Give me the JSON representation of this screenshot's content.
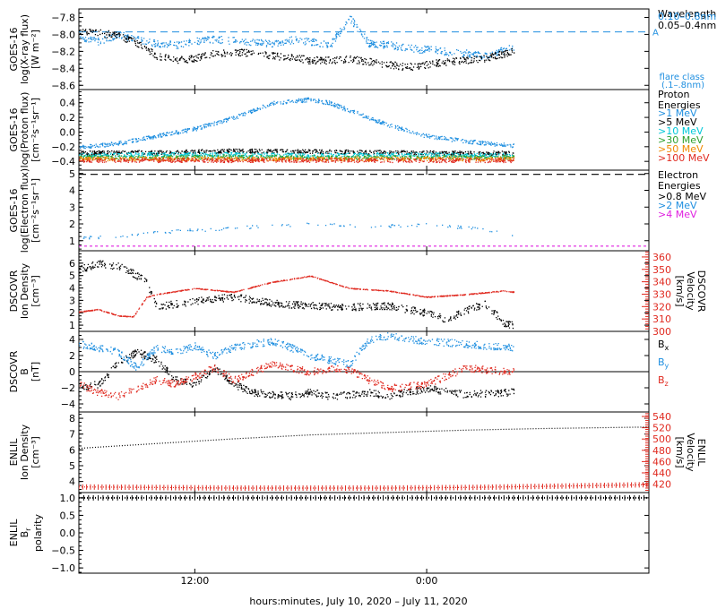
{
  "colors": {
    "black": "#000000",
    "blue": "#1f8fe0",
    "cyan": "#00c8d8",
    "green": "#2ea02e",
    "orange": "#f08a00",
    "red": "#e02a20",
    "magenta": "#e020e0",
    "xray_short": "#1f8fe0"
  },
  "x_axis": {
    "label": "hours:minutes, July 10, 2020 – July 11, 2020",
    "range_hours": [
      6,
      35.5
    ],
    "ticks": [
      {
        "label": "12:00",
        "hour": 12
      },
      {
        "label": "0:00",
        "hour": 24
      }
    ]
  },
  "chart_data": [
    {
      "id": "xray",
      "type": "scatter",
      "ylabel": [
        "GOES-16",
        "log(X-ray flux)",
        "[W m⁻²]"
      ],
      "ylim": [
        -8.65,
        -7.7
      ],
      "yticks": [
        -8.6,
        -8.4,
        -8.2,
        -8.0,
        -7.8
      ],
      "ytick_labels": [
        "−8.6",
        "−8.4",
        "−8.2",
        "−8.0",
        "−7.8"
      ],
      "legend": {
        "title": "Wavelength",
        "entries": [
          {
            "name": "0.10–0.8nm",
            "color_key": "blue"
          },
          {
            "name": "0.05–0.4nm",
            "color_key": "black"
          }
        ]
      },
      "reference_line": {
        "y": -7.97,
        "label": "A",
        "note": "flare class",
        "note2": "(.1–.8nm)"
      },
      "series": [
        {
          "name": "0.10–0.8nm",
          "color_key": "blue",
          "x": [
            6,
            7,
            8,
            9,
            10,
            11,
            12,
            13,
            14,
            15,
            16,
            17,
            18,
            19,
            20,
            21,
            22,
            23,
            23.8,
            24,
            25,
            26,
            27,
            28,
            28.5
          ],
          "y": [
            -8.02,
            -8.08,
            -8.0,
            -8.05,
            -8.1,
            -8.12,
            -8.08,
            -8.05,
            -8.07,
            -8.09,
            -8.1,
            -8.06,
            -8.08,
            -8.12,
            -7.8,
            -8.1,
            -8.12,
            -8.15,
            -8.18,
            -8.16,
            -8.2,
            -8.22,
            -8.25,
            -8.18,
            -8.15
          ]
        },
        {
          "name": "0.05–0.4nm",
          "color_key": "black",
          "x": [
            6,
            7,
            8,
            9,
            10,
            11,
            12,
            13,
            14,
            15,
            16,
            17,
            18,
            19,
            20,
            21,
            22,
            23,
            24,
            25,
            26,
            27,
            28,
            28.5
          ],
          "y": [
            -7.95,
            -7.98,
            -8.0,
            -8.1,
            -8.25,
            -8.3,
            -8.28,
            -8.22,
            -8.2,
            -8.22,
            -8.25,
            -8.27,
            -8.3,
            -8.3,
            -8.28,
            -8.32,
            -8.35,
            -8.38,
            -8.35,
            -8.32,
            -8.3,
            -8.28,
            -8.22,
            -8.18
          ]
        }
      ]
    },
    {
      "id": "proton",
      "type": "scatter",
      "ylabel": [
        "GOES-16",
        "log(Proton flux)",
        "[cm⁻²s⁻¹sr⁻¹]"
      ],
      "ylim": [
        -0.52,
        0.58
      ],
      "yticks": [
        -0.4,
        -0.2,
        0.0,
        0.2,
        0.4
      ],
      "ytick_labels": [
        "−0.4",
        "−0.2",
        "0.0",
        "0.2",
        "0.4"
      ],
      "legend": {
        "title": "Proton Energies",
        "entries": [
          {
            "name": ">1 MeV",
            "color_key": "blue"
          },
          {
            "name": ">5 MeV",
            "color_key": "black"
          },
          {
            "name": ">10 MeV",
            "color_key": "cyan"
          },
          {
            "name": ">30 MeV",
            "color_key": "green"
          },
          {
            "name": ">50 MeV",
            "color_key": "orange"
          },
          {
            "name": ">100 MeV",
            "color_key": "red"
          }
        ]
      },
      "series": [
        {
          "name": ">1 MeV",
          "color_key": "blue",
          "x": [
            6,
            8,
            10,
            12,
            14,
            16,
            18,
            19,
            20,
            22,
            24,
            26,
            28.5
          ],
          "y": [
            -0.2,
            -0.15,
            -0.05,
            0.05,
            0.2,
            0.4,
            0.45,
            0.4,
            0.3,
            0.1,
            -0.05,
            -0.12,
            -0.18
          ]
        },
        {
          "name": ">5 MeV",
          "color_key": "black",
          "x": [
            6,
            10,
            14,
            18,
            22,
            26,
            28.5
          ],
          "y": [
            -0.28,
            -0.27,
            -0.25,
            -0.26,
            -0.27,
            -0.28,
            -0.28
          ]
        },
        {
          "name": ">10 MeV",
          "color_key": "cyan",
          "x": [
            6,
            10,
            14,
            18,
            22,
            26,
            28.5
          ],
          "y": [
            -0.31,
            -0.3,
            -0.3,
            -0.31,
            -0.3,
            -0.31,
            -0.31
          ]
        },
        {
          "name": ">30 MeV",
          "color_key": "green",
          "x": [
            6,
            10,
            14,
            18,
            22,
            26,
            28.5
          ],
          "y": [
            -0.34,
            -0.34,
            -0.33,
            -0.34,
            -0.34,
            -0.34,
            -0.34
          ]
        },
        {
          "name": ">50 MeV",
          "color_key": "orange",
          "x": [
            6,
            10,
            14,
            18,
            22,
            26,
            28.5
          ],
          "y": [
            -0.36,
            -0.36,
            -0.36,
            -0.36,
            -0.36,
            -0.36,
            -0.36
          ]
        },
        {
          "name": ">100 MeV",
          "color_key": "red",
          "x": [
            6,
            10,
            14,
            18,
            22,
            26,
            28.5
          ],
          "y": [
            -0.38,
            -0.38,
            -0.38,
            -0.38,
            -0.38,
            -0.38,
            -0.38
          ]
        }
      ]
    },
    {
      "id": "electron",
      "type": "scatter",
      "ylabel": [
        "GOES-16",
        "log(Electron flux)",
        "[cm⁻²s⁻¹sr⁻¹]"
      ],
      "ylim": [
        0.4,
        5.2
      ],
      "yticks": [
        1,
        2,
        3,
        4,
        5
      ],
      "ytick_labels": [
        "1",
        "2",
        "3",
        "4",
        "5"
      ],
      "legend": {
        "title": "Electron Energies",
        "entries": [
          {
            "name": ">0.8 MeV",
            "color_key": "black"
          },
          {
            "name": ">2 MeV",
            "color_key": "blue"
          },
          {
            "name": ">4 MeV",
            "color_key": "magenta"
          }
        ]
      },
      "series": [
        {
          "name": ">0.8 MeV",
          "color_key": "black",
          "x": [
            6,
            35.5
          ],
          "y": [
            4.95,
            4.95
          ]
        },
        {
          "name": ">2 MeV",
          "color_key": "blue",
          "x": [
            6,
            8,
            10,
            14,
            18,
            22,
            24,
            26,
            28.5
          ],
          "y": [
            1.2,
            1.3,
            1.5,
            1.8,
            2.0,
            1.9,
            2.0,
            1.8,
            1.4
          ]
        },
        {
          "name": ">4 MeV",
          "color_key": "magenta",
          "x": [
            6,
            35.5
          ],
          "y": [
            0.68,
            0.68
          ]
        }
      ]
    },
    {
      "id": "dscovr_density",
      "type": "scatter",
      "ylabel": [
        "DSCOVR",
        "Ion Density",
        "[cm⁻³]"
      ],
      "y2label": [
        "DSCOVR",
        "Velocity",
        "[km/s]"
      ],
      "ylim": [
        0.5,
        7.0
      ],
      "yticks": [
        1,
        2,
        3,
        4,
        5,
        6
      ],
      "ytick_labels": [
        "1",
        "2",
        "3",
        "4",
        "5",
        "6"
      ],
      "y2lim": [
        300,
        365
      ],
      "y2ticks": [
        300,
        310,
        320,
        330,
        340,
        350,
        360
      ],
      "y2tick_labels": [
        "300",
        "310",
        "320",
        "330",
        "340",
        "350",
        "360"
      ],
      "series": [
        {
          "name": "Ion Density",
          "axis": "left",
          "color_key": "black",
          "x": [
            6,
            7,
            8,
            8.8,
            9.5,
            10,
            12,
            14,
            16,
            18,
            20,
            22,
            24,
            25,
            26,
            27,
            28,
            28.5
          ],
          "y": [
            5.5,
            6.0,
            5.8,
            5.2,
            4.5,
            2.5,
            3.0,
            3.3,
            2.8,
            2.6,
            2.5,
            2.6,
            2.0,
            1.5,
            2.2,
            2.8,
            1.2,
            1.0
          ]
        },
        {
          "name": "Velocity",
          "axis": "right",
          "color_key": "red",
          "x": [
            6,
            7,
            8,
            8.8,
            9.5,
            10,
            12,
            14,
            16,
            18,
            20,
            22,
            24,
            26,
            28,
            28.5
          ],
          "y": [
            316,
            318,
            313,
            312,
            328,
            330,
            335,
            332,
            340,
            345,
            335,
            333,
            328,
            330,
            333,
            332
          ]
        }
      ]
    },
    {
      "id": "dscovr_b",
      "type": "scatter",
      "ylabel": [
        "DSCOVR",
        "B",
        "[nT]"
      ],
      "ylim": [
        -5,
        5
      ],
      "yticks": [
        -4,
        -2,
        0,
        2,
        4
      ],
      "ytick_labels": [
        "−4",
        "−2",
        "0",
        "2",
        "4"
      ],
      "zero_line": 0,
      "legend": {
        "title": "",
        "entries": [
          {
            "name": "Bx",
            "base": "B",
            "sub": "x",
            "color_key": "black"
          },
          {
            "name": "By",
            "base": "B",
            "sub": "y",
            "color_key": "blue"
          },
          {
            "name": "Bz",
            "base": "B",
            "sub": "z",
            "color_key": "red"
          }
        ]
      },
      "series": [
        {
          "name": "Bx",
          "color_key": "black",
          "x": [
            6,
            7,
            8,
            9,
            10,
            11,
            12,
            13,
            14,
            15,
            16,
            17,
            18,
            19,
            20,
            21,
            22,
            24,
            26,
            28.5
          ],
          "y": [
            -2.0,
            -1.5,
            1.0,
            2.5,
            1.5,
            -1.0,
            -1.5,
            0.5,
            -1.5,
            -2.5,
            -2.8,
            -3.0,
            -2.5,
            -3.0,
            -2.8,
            -2.5,
            -3.0,
            -2.0,
            -2.8,
            -2.5
          ]
        },
        {
          "name": "By",
          "color_key": "blue",
          "x": [
            6,
            7,
            8,
            9,
            10,
            11,
            12,
            13,
            14,
            15,
            16,
            17,
            18,
            19,
            20,
            21,
            22,
            24,
            26,
            28.5
          ],
          "y": [
            3.5,
            3.0,
            2.5,
            0.5,
            3.0,
            2.5,
            3.2,
            2.0,
            3.0,
            3.5,
            3.8,
            3.0,
            2.0,
            1.5,
            1.0,
            4.0,
            4.5,
            3.8,
            3.5,
            3.0
          ]
        },
        {
          "name": "Bz",
          "color_key": "red",
          "x": [
            6,
            7,
            8,
            9,
            10,
            11,
            12,
            13,
            14,
            15,
            16,
            17,
            18,
            19,
            20,
            21,
            22,
            24,
            26,
            28.5
          ],
          "y": [
            -1.5,
            -2.5,
            -3.0,
            -2.0,
            -1.0,
            -1.5,
            -0.5,
            0.5,
            -1.0,
            0.0,
            1.0,
            0.5,
            0.0,
            0.5,
            0.3,
            -1.0,
            -2.0,
            -1.5,
            0.5,
            0.0
          ]
        }
      ]
    },
    {
      "id": "enlil_density",
      "type": "line",
      "ylabel": [
        "ENLIL",
        "Ion Density",
        "[cm⁻³]"
      ],
      "y2label": [
        "ENLIL",
        "Velocity",
        "[km/s]"
      ],
      "ylim": [
        3.3,
        8.4
      ],
      "yticks": [
        4,
        5,
        6,
        7,
        8
      ],
      "ytick_labels": [
        "4",
        "5",
        "6",
        "7",
        "8"
      ],
      "y2lim": [
        405,
        548
      ],
      "y2ticks": [
        420,
        440,
        460,
        480,
        500,
        520,
        540
      ],
      "y2tick_labels": [
        "420",
        "440",
        "460",
        "480",
        "500",
        "520",
        "540"
      ],
      "series": [
        {
          "name": "Ion Density",
          "axis": "left",
          "color_key": "black",
          "x": [
            6,
            10,
            14,
            18,
            22,
            26,
            30,
            35.5
          ],
          "y": [
            6.1,
            6.4,
            6.7,
            6.95,
            7.1,
            7.25,
            7.35,
            7.45
          ]
        },
        {
          "name": "Velocity",
          "axis": "right",
          "color_key": "red",
          "x": [
            6,
            10,
            14,
            18,
            22,
            26,
            30,
            35.5
          ],
          "y": [
            415,
            414,
            413,
            413,
            413,
            414,
            416,
            419
          ]
        }
      ]
    },
    {
      "id": "enlil_br",
      "type": "line",
      "ylabel": [
        "ENLIL",
        "B",
        "polarity"
      ],
      "ylabel_sub": "r",
      "ylim": [
        -1.15,
        1.15
      ],
      "yticks": [
        -1.0,
        -0.5,
        0.0,
        0.5,
        1.0
      ],
      "ytick_labels": [
        "−1.0",
        "−0.5",
        "0.0",
        "0.5",
        "1.0"
      ],
      "series": [
        {
          "name": "Br polarity",
          "color_key": "black",
          "x": [
            6,
            35.5
          ],
          "y": [
            1.0,
            1.0
          ]
        }
      ]
    }
  ]
}
